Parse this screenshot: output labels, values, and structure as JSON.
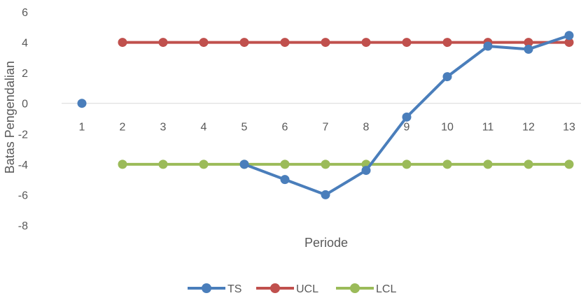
{
  "chart_data": {
    "type": "line",
    "title": "",
    "xlabel": "Periode",
    "ylabel": "Batas Pengendalian",
    "categories": [
      "1",
      "2",
      "3",
      "4",
      "5",
      "6",
      "7",
      "8",
      "9",
      "10",
      "11",
      "12",
      "13"
    ],
    "ylim": [
      -8,
      6
    ],
    "yticks": [
      6,
      4,
      2,
      0,
      -2,
      -4,
      -6,
      -8
    ],
    "grid": false,
    "legend_position": "bottom",
    "series": [
      {
        "name": "TS",
        "color": "#4A7EBB",
        "values": [
          0,
          null,
          null,
          null,
          -4,
          -5,
          -6,
          -4.4,
          -0.9,
          1.75,
          3.75,
          3.55,
          4.45
        ]
      },
      {
        "name": "UCL",
        "color": "#C0504D",
        "values": [
          null,
          4,
          4,
          4,
          4,
          4,
          4,
          4,
          4,
          4,
          4,
          4,
          4
        ]
      },
      {
        "name": "LCL",
        "color": "#9BBB59",
        "values": [
          null,
          -4,
          -4,
          -4,
          -4,
          -4,
          -4,
          -4,
          -4,
          -4,
          -4,
          -4,
          -4
        ]
      }
    ]
  }
}
